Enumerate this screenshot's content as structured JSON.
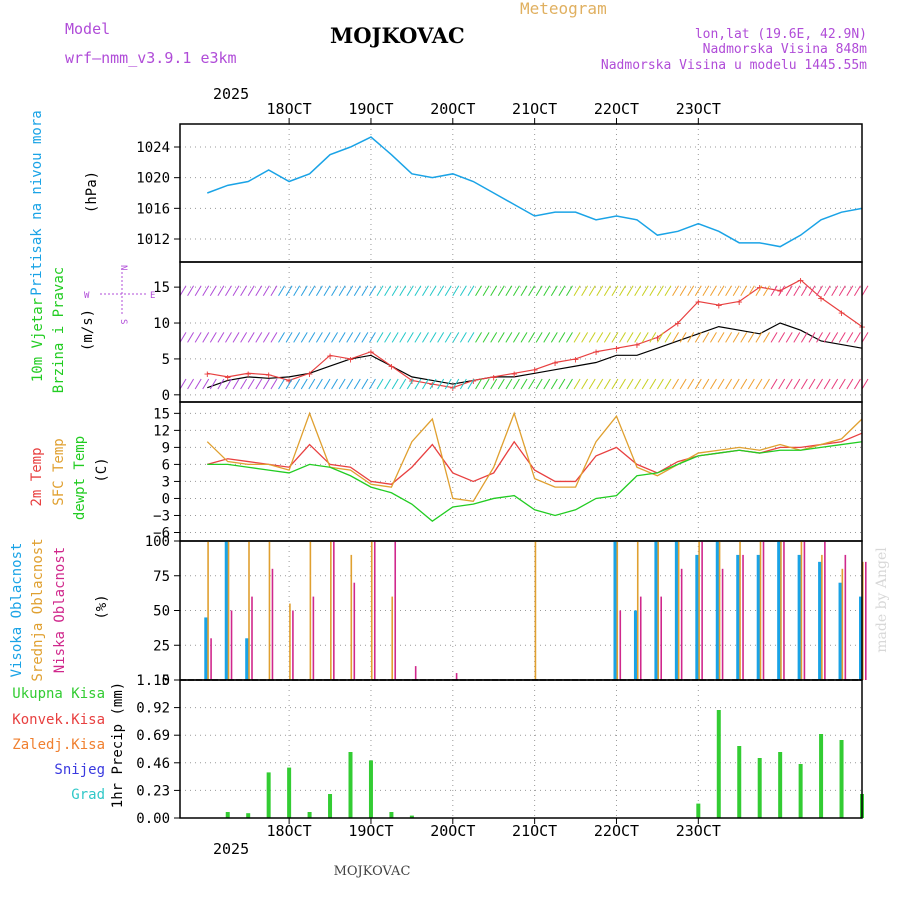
{
  "header": {
    "model_label": "Model",
    "model_name": "wrf–nmm_v3.9.1  e3km",
    "station": "MOJKOVAC",
    "meteogram_label": "Meteogram",
    "lonlat": "lon,lat (19.6E, 42.9N)",
    "elevation": "Nadmorska Visina 848m",
    "model_elevation": "Nadmorska Visina u modelu 1445.55m",
    "credit": "made by Angel",
    "footer_station": "MOJKOVAC",
    "year_top": "2025",
    "year_bottom": "2025"
  },
  "colors": {
    "pressure": "#1aa3e6",
    "wind_label": "#22cc22",
    "wind_purple": "#b04cd8",
    "temp2m": "#e84040",
    "sfc": "#e0a030",
    "dew": "#22cc22",
    "high_cloud": "#1aa3e6",
    "mid_cloud": "#e0a030",
    "low_cloud": "#d0288c",
    "total_precip": "#33cc33",
    "conv_precip": "#e84040",
    "frz_precip": "#f08030",
    "snow": "#3a3ae0",
    "hail": "#30c8c8",
    "grid": "#999999"
  },
  "chart_data": [
    {
      "id": "pressure",
      "type": "line",
      "title": "Pritisak na nivou mora",
      "ylabel": "(hPa)",
      "ylim": [
        1009,
        1027
      ],
      "yticks": [
        1012,
        1016,
        1020,
        1024
      ],
      "x_day_ticks": [
        "18OCT",
        "19OCT",
        "20OCT",
        "21OCT",
        "22OCT",
        "23OCT"
      ],
      "x_hours": [
        0,
        6,
        12,
        18,
        24,
        30,
        36,
        42,
        48,
        54,
        60,
        66,
        72,
        78,
        84,
        90,
        96,
        102,
        108,
        114,
        120,
        126,
        132,
        138,
        144,
        150,
        156,
        162,
        168,
        174,
        180,
        186,
        192
      ],
      "values": [
        1018,
        1019,
        1019.5,
        1021,
        1019.5,
        1020.5,
        1023,
        1024,
        1025.3,
        1023,
        1020.5,
        1020,
        1020.5,
        1019.5,
        1018,
        1016.5,
        1015,
        1015.5,
        1015.5,
        1014.5,
        1015,
        1014.5,
        1012.5,
        1013,
        1014,
        1013,
        1011.5,
        1011.5,
        1011,
        1012.5,
        1014.5,
        1015.5,
        1016
      ]
    },
    {
      "id": "wind",
      "type": "line",
      "title": "10m Vjetar Brzina i Pravac",
      "ylabel": "(m/s)",
      "ylim": [
        -1,
        18.5
      ],
      "yticks": [
        0,
        5,
        10,
        15
      ],
      "compass": {
        "north": "N",
        "east": "E",
        "west": "W",
        "south": "S"
      },
      "x_hours": [
        0,
        6,
        12,
        18,
        24,
        30,
        36,
        42,
        48,
        54,
        60,
        66,
        72,
        78,
        84,
        90,
        96,
        102,
        108,
        114,
        120,
        126,
        132,
        138,
        144,
        150,
        156,
        162,
        168,
        174,
        180,
        186,
        192
      ],
      "series": [
        {
          "name": "speed",
          "values": [
            1,
            2,
            2.5,
            2.3,
            2.5,
            3,
            4,
            5,
            5.5,
            4,
            2.5,
            2,
            1.5,
            2,
            2.5,
            2.5,
            3,
            3.5,
            4,
            4.5,
            5.5,
            5.5,
            6.5,
            7.5,
            8.5,
            9.5,
            9,
            8.5,
            10,
            9,
            7.5,
            7,
            6.5
          ]
        },
        {
          "name": "gust",
          "values": [
            3,
            2.5,
            3,
            2.8,
            2,
            3,
            5.5,
            5,
            6,
            4,
            2,
            1.5,
            1,
            2,
            2.5,
            3,
            3.5,
            4.5,
            5,
            6,
            6.5,
            7,
            8,
            10,
            13,
            12.5,
            13,
            15,
            14.5,
            16,
            13.5,
            11.5,
            9.5
          ]
        }
      ]
    },
    {
      "id": "temperature",
      "type": "line",
      "title": "2m Temp",
      "title2": "SFC Temp",
      "title3": "dewpt Temp",
      "ylabel": "(C)",
      "ylim": [
        -7.5,
        17
      ],
      "yticks": [
        -6,
        -3,
        0,
        3,
        6,
        9,
        12,
        15
      ],
      "x_hours": [
        0,
        6,
        12,
        18,
        24,
        30,
        36,
        42,
        48,
        54,
        60,
        66,
        72,
        78,
        84,
        90,
        96,
        102,
        108,
        114,
        120,
        126,
        132,
        138,
        144,
        150,
        156,
        162,
        168,
        174,
        180,
        186,
        192
      ],
      "series": [
        {
          "name": "2m",
          "values": [
            6,
            7,
            6.5,
            6,
            5.5,
            9.5,
            6,
            5.5,
            3,
            2.5,
            5.5,
            9.5,
            4.5,
            3,
            4.5,
            10,
            5,
            3,
            3,
            7.5,
            9,
            6,
            4.5,
            6.5,
            7.5,
            8,
            8.5,
            8,
            9,
            9,
            9.5,
            10,
            11.5
          ]
        },
        {
          "name": "SFC",
          "values": [
            10,
            6.5,
            6,
            6,
            5,
            15,
            5.5,
            5,
            2.5,
            2,
            10,
            14,
            0,
            -0.5,
            5.5,
            15,
            3.5,
            2,
            2,
            10,
            14.5,
            5.5,
            4,
            6,
            8,
            8.5,
            9,
            8.5,
            9.5,
            8.5,
            9.5,
            10.5,
            14
          ]
        },
        {
          "name": "dewpt",
          "values": [
            6,
            6,
            5.5,
            5,
            4.5,
            6,
            5.5,
            4,
            2,
            1,
            -1,
            -4,
            -1.5,
            -1,
            0,
            0.5,
            -2,
            -3,
            -2,
            0,
            0.5,
            4,
            4.5,
            6,
            7.5,
            8,
            8.5,
            8,
            8.5,
            8.5,
            9,
            9.5,
            10
          ]
        }
      ]
    },
    {
      "id": "clouds",
      "type": "bar",
      "title": "Visoka Oblacnost",
      "title2": "Srednja Oblacnost",
      "title3": "Niska Oblacnost",
      "ylabel": "(%)",
      "ylim": [
        0,
        100
      ],
      "yticks": [
        0,
        25,
        50,
        75,
        100
      ],
      "x_hours": [
        0,
        6,
        12,
        18,
        24,
        30,
        36,
        42,
        48,
        54,
        60,
        66,
        72,
        78,
        84,
        90,
        96,
        102,
        108,
        114,
        120,
        126,
        132,
        138,
        144,
        150,
        156,
        162,
        168,
        174,
        180,
        186,
        192
      ],
      "series": [
        {
          "name": "high",
          "values": [
            45,
            100,
            30,
            0,
            0,
            0,
            0,
            0,
            0,
            0,
            0,
            0,
            0,
            0,
            0,
            0,
            0,
            0,
            0,
            0,
            100,
            50,
            100,
            100,
            90,
            100,
            90,
            90,
            100,
            90,
            85,
            70,
            60
          ]
        },
        {
          "name": "mid",
          "values": [
            100,
            100,
            100,
            100,
            55,
            100,
            100,
            90,
            100,
            60,
            0,
            0,
            0,
            0,
            0,
            0,
            100,
            0,
            0,
            0,
            100,
            100,
            100,
            100,
            100,
            100,
            100,
            100,
            100,
            100,
            90,
            80,
            85
          ]
        },
        {
          "name": "low",
          "values": [
            30,
            50,
            60,
            80,
            50,
            60,
            100,
            70,
            100,
            100,
            10,
            0,
            5,
            0,
            0,
            0,
            0,
            0,
            0,
            0,
            50,
            60,
            60,
            80,
            100,
            80,
            90,
            100,
            100,
            100,
            100,
            90,
            85
          ]
        }
      ]
    },
    {
      "id": "precip",
      "type": "bar",
      "title": "1hr Precip (mm)",
      "ylabel": "1hr Precip (mm)",
      "ylim": [
        0,
        1.15
      ],
      "yticks": [
        0,
        0.23,
        0.46,
        0.69,
        0.92,
        1.15
      ],
      "legend": [
        "Ukupna Kisa",
        "Konvek.Kisa",
        "Zaledj.Kisa",
        "Snijeg",
        "Grad"
      ],
      "x_hours": [
        0,
        6,
        12,
        18,
        24,
        30,
        36,
        42,
        48,
        54,
        60,
        66,
        72,
        78,
        84,
        90,
        96,
        102,
        108,
        114,
        120,
        126,
        132,
        138,
        144,
        150,
        156,
        162,
        168,
        174,
        180,
        186,
        192
      ],
      "series": [
        {
          "name": "total",
          "values": [
            0,
            0.05,
            0.04,
            0.38,
            0.42,
            0.05,
            0.2,
            0.55,
            0.48,
            0.05,
            0.02,
            0,
            0,
            0,
            0,
            0,
            0,
            0,
            0,
            0,
            0,
            0,
            0,
            0,
            0.12,
            0.9,
            0.6,
            0.5,
            0.55,
            0.45,
            0.7,
            0.65,
            0.2
          ]
        }
      ]
    }
  ]
}
